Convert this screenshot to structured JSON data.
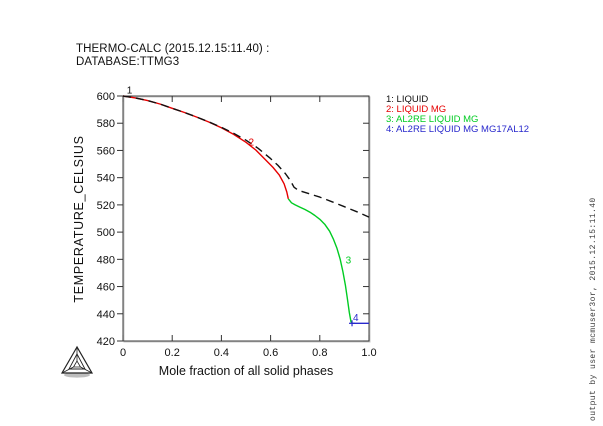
{
  "header": {
    "line1": "THERMO-CALC (2015.12.15:11.40) :",
    "line2": "DATABASE:TTMG3"
  },
  "footer": {
    "vertical_text": "output by user mcmuser3or, 2015.12.15:11.40"
  },
  "legend": {
    "items": [
      {
        "label": "1: LIQUID",
        "color": "#111111"
      },
      {
        "label": "2: LIQUID MG",
        "color": "#e60000"
      },
      {
        "label": "3: AL2RE LIQUID MG",
        "color": "#00cc22"
      },
      {
        "label": "4: AL2RE LIQUID MG MG17AL12",
        "color": "#2828cc"
      }
    ]
  },
  "chart_data": {
    "type": "line",
    "title": "",
    "xlabel": "Mole fraction of all solid phases",
    "ylabel": "TEMPERATURE_CELSIUS",
    "xlim": [
      0,
      1.0
    ],
    "ylim": [
      420,
      600
    ],
    "grid": false,
    "legend_position": "right",
    "x_ticks": [
      0,
      0.2,
      0.4,
      0.6,
      0.8,
      1.0
    ],
    "x_tick_labels": [
      "0",
      "0.2",
      "0.4",
      "0.6",
      "0.8",
      "1.0"
    ],
    "y_ticks": [
      600,
      580,
      560,
      540,
      520,
      500,
      480,
      460,
      440,
      420
    ],
    "y_tick_labels": [
      "600",
      "580",
      "560",
      "540",
      "520",
      "500",
      "480",
      "460",
      "440",
      "420"
    ],
    "series": [
      {
        "id": "liquid-mg",
        "name": "2: LIQUID MG",
        "color": "#e60000",
        "style": "solid",
        "points": [
          [
            0,
            600
          ],
          [
            0.05,
            598.6
          ],
          [
            0.1,
            596.6
          ],
          [
            0.15,
            594.1
          ],
          [
            0.2,
            591
          ],
          [
            0.25,
            587.9
          ],
          [
            0.3,
            584.5
          ],
          [
            0.35,
            580.8
          ],
          [
            0.4,
            576.6
          ],
          [
            0.45,
            571.8
          ],
          [
            0.5,
            566
          ],
          [
            0.54,
            560.3
          ],
          [
            0.58,
            553
          ],
          [
            0.61,
            547.5
          ],
          [
            0.635,
            542
          ],
          [
            0.655,
            535.5
          ],
          [
            0.666,
            529.5
          ],
          [
            0.672,
            524.5
          ]
        ]
      },
      {
        "id": "liquid",
        "name": "1: LIQUID",
        "color": "#111111",
        "style": "dashed",
        "points": [
          [
            0,
            600
          ],
          [
            0.05,
            598.6
          ],
          [
            0.1,
            596.6
          ],
          [
            0.15,
            594.1
          ],
          [
            0.2,
            591
          ],
          [
            0.25,
            587.9
          ],
          [
            0.3,
            584.5
          ],
          [
            0.35,
            580.9
          ],
          [
            0.4,
            577
          ],
          [
            0.45,
            572.6
          ],
          [
            0.5,
            567.5
          ],
          [
            0.55,
            561.5
          ],
          [
            0.6,
            554
          ],
          [
            0.63,
            549
          ],
          [
            0.66,
            543
          ],
          [
            0.68,
            538
          ],
          [
            0.695,
            533
          ],
          [
            0.71,
            531
          ],
          [
            0.73,
            529.7
          ],
          [
            0.76,
            528
          ],
          [
            0.8,
            525.7
          ],
          [
            0.85,
            522.3
          ],
          [
            0.9,
            518.7
          ],
          [
            0.95,
            515
          ],
          [
            1.0,
            511
          ]
        ]
      },
      {
        "id": "al2re-liquid-mg",
        "name": "3: AL2RE LIQUID MG",
        "color": "#00cc22",
        "style": "solid",
        "points": [
          [
            0.672,
            524.5
          ],
          [
            0.685,
            521.5
          ],
          [
            0.7,
            520
          ],
          [
            0.72,
            518.3
          ],
          [
            0.74,
            516.6
          ],
          [
            0.76,
            514.6
          ],
          [
            0.78,
            512.2
          ],
          [
            0.8,
            509.4
          ],
          [
            0.82,
            505.8
          ],
          [
            0.84,
            500.7
          ],
          [
            0.855,
            495
          ],
          [
            0.87,
            488
          ],
          [
            0.883,
            480
          ],
          [
            0.894,
            471
          ],
          [
            0.904,
            461
          ],
          [
            0.912,
            451
          ],
          [
            0.92,
            441
          ],
          [
            0.927,
            434
          ],
          [
            0.931,
            433
          ]
        ]
      },
      {
        "id": "al2re-liquid-mg-mg17al12",
        "name": "4: AL2RE LIQUID MG MG17AL12",
        "color": "#2828cc",
        "style": "solid",
        "marker": "cross",
        "points": [
          [
            0.931,
            433
          ],
          [
            1.0,
            433
          ]
        ]
      }
    ],
    "curve_labels": [
      {
        "text": "1",
        "x": 0.015,
        "y": 604,
        "color": "#111111"
      },
      {
        "text": "2",
        "x": 0.51,
        "y": 566,
        "color": "#e60000"
      },
      {
        "text": "3",
        "x": 0.905,
        "y": 479,
        "color": "#00cc22"
      },
      {
        "text": "4",
        "x": 0.935,
        "y": 437,
        "color": "#2828cc"
      }
    ]
  }
}
